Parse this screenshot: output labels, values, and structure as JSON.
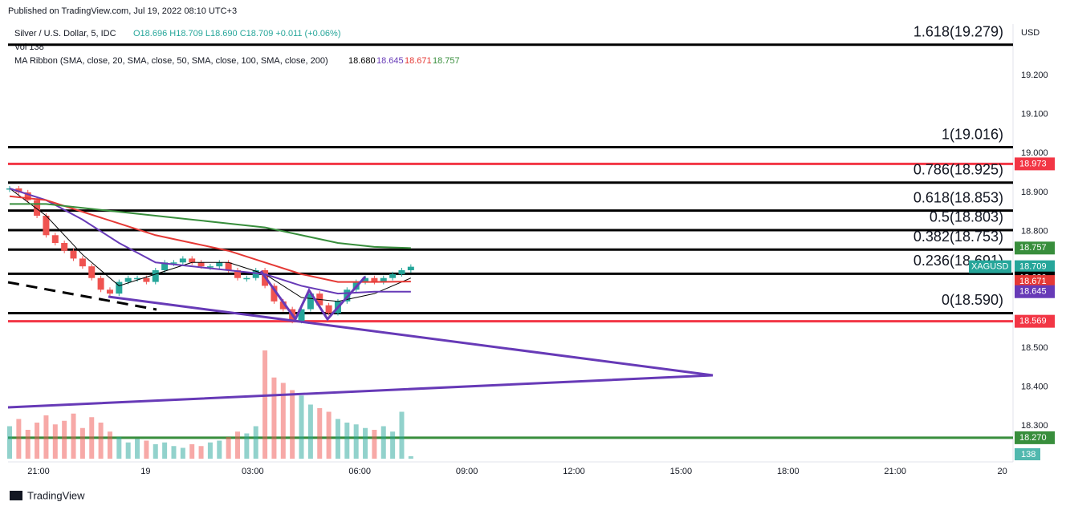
{
  "chart_data": {
    "type": "candlestick",
    "published": "Published on TradingView.com, Jul 19, 2022 08:10 UTC+3",
    "title": "Silver / U.S. Dollar, 5, IDC",
    "ohlc": "O18.696 H18.709 L18.690 C18.709 +0.011 (+0.06%)",
    "volume_label": "Vol 138",
    "ma_label": "MA Ribbon (SMA, close, 20, SMA, close, 50, SMA, close, 100, SMA, close, 200)",
    "currency": "USD",
    "footer": "TradingView",
    "ylim": [
      18.208,
      19.332
    ],
    "yticks": [
      {
        "value": 19.2,
        "label": "19.200"
      },
      {
        "value": 19.1,
        "label": "19.100"
      },
      {
        "value": 19.0,
        "label": "19.000"
      },
      {
        "value": 18.9,
        "label": "18.900"
      },
      {
        "value": 18.8,
        "label": "18.800"
      },
      {
        "value": 18.5,
        "label": "18.500"
      },
      {
        "value": 18.4,
        "label": "18.400"
      },
      {
        "value": 18.3,
        "label": "18.300"
      }
    ],
    "xticks": [
      "21:00",
      "19",
      "03:00",
      "06:00",
      "09:00",
      "12:00",
      "15:00",
      "18:00",
      "21:00",
      "20"
    ],
    "up_color": "#26a69a",
    "down_color": "#ef5350",
    "close": [
      18.91,
      18.9,
      18.88,
      18.84,
      18.79,
      18.77,
      18.75,
      18.73,
      18.71,
      18.68,
      18.65,
      18.64,
      18.67,
      18.68,
      18.68,
      18.67,
      18.7,
      18.72,
      18.72,
      18.73,
      18.72,
      18.71,
      18.71,
      18.72,
      18.7,
      18.68,
      18.68,
      18.7,
      18.66,
      18.62,
      18.6,
      18.57,
      18.6,
      18.64,
      18.61,
      18.59,
      18.62,
      18.65,
      18.67,
      18.68,
      18.67,
      18.68,
      18.69,
      18.7,
      18.709
    ],
    "volume": [
      1800,
      2200,
      1600,
      2000,
      2400,
      1900,
      2100,
      2500,
      1700,
      2300,
      2000,
      1500,
      1200,
      900,
      1100,
      1000,
      800,
      900,
      700,
      600,
      800,
      700,
      900,
      1000,
      1200,
      1500,
      1400,
      1800,
      6000,
      4500,
      4200,
      3800,
      3500,
      3000,
      2800,
      2600,
      2200,
      2000,
      1900,
      1700,
      1600,
      1800,
      1500,
      2600,
      138
    ],
    "series": [
      {
        "name": "18.680",
        "color": "#000000",
        "values": [
          18.91,
          18.84,
          18.74,
          18.66,
          18.69,
          18.72,
          18.72,
          18.69,
          18.63,
          18.62,
          18.64,
          18.68
        ]
      },
      {
        "name": "18.645",
        "color": "#673ab7",
        "values": [
          18.91,
          18.88,
          18.83,
          18.77,
          18.72,
          18.71,
          18.7,
          18.69,
          18.66,
          18.64,
          18.645,
          18.645
        ]
      },
      {
        "name": "18.671",
        "color": "#e53935",
        "values": [
          18.89,
          18.88,
          18.85,
          18.82,
          18.79,
          18.77,
          18.75,
          18.72,
          18.69,
          18.67,
          18.67,
          18.671
        ]
      },
      {
        "name": "18.757",
        "color": "#388e3c",
        "values": [
          18.87,
          18.87,
          18.86,
          18.85,
          18.84,
          18.83,
          18.82,
          18.81,
          18.79,
          18.77,
          18.76,
          18.757
        ]
      }
    ],
    "fib_levels": [
      {
        "value": 19.279,
        "label": "1.618(19.279)"
      },
      {
        "value": 19.016,
        "label": "1(19.016)"
      },
      {
        "value": 18.925,
        "label": "0.786(18.925)"
      },
      {
        "value": 18.853,
        "label": "0.618(18.853)"
      },
      {
        "value": 18.803,
        "label": "0.5(18.803)"
      },
      {
        "value": 18.753,
        "label": "0.382(18.753)"
      },
      {
        "value": 18.691,
        "label": "0.236(18.691)"
      },
      {
        "value": 18.59,
        "label": "0(18.590)"
      }
    ],
    "fib_color": "#000000",
    "lines": [
      {
        "value": 18.973,
        "color": "#f23645"
      },
      {
        "value": 18.569,
        "color": "#f23645"
      },
      {
        "value": 18.27,
        "color": "#388e3c"
      }
    ],
    "price_tags": [
      {
        "value": 18.973,
        "label": "18.973",
        "color": "#f23645"
      },
      {
        "value": 18.757,
        "label": "18.757",
        "color": "#388e3c"
      },
      {
        "value": 18.709,
        "label": "18.709",
        "name": "XAGUSD",
        "color": "#26a69a"
      },
      {
        "value": 18.68,
        "label": "18.680",
        "color": "#000000"
      },
      {
        "value": 18.671,
        "label": "18.671",
        "color": "#e53935"
      },
      {
        "value": 18.645,
        "label": "18.645",
        "color": "#673ab7"
      },
      {
        "value": 18.569,
        "label": "18.569",
        "color": "#f23645"
      },
      {
        "value": 18.27,
        "label": "18.270",
        "color": "#388e3c"
      }
    ]
  }
}
